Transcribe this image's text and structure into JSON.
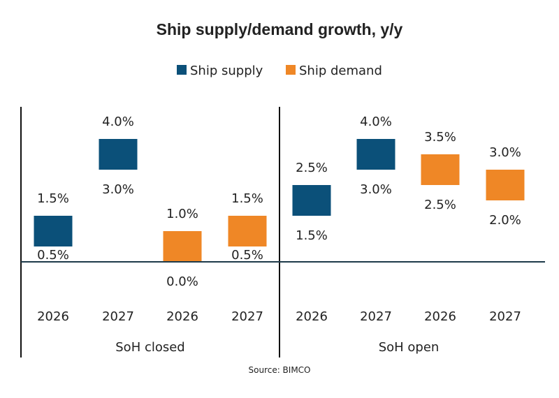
{
  "chart_data": {
    "type": "bar",
    "subtype": "floating-range",
    "title": "Ship supply/demand  growth, y/y",
    "source": "Source: BIMCO",
    "legend_position": "top",
    "series": [
      {
        "name": "Ship supply",
        "color": "#0b5079"
      },
      {
        "name": "Ship demand",
        "color": "#ef8726"
      }
    ],
    "groups": [
      {
        "label": "SoH closed",
        "bars": [
          {
            "category": "2026",
            "series": "Ship supply",
            "low": 0.5,
            "high": 1.5,
            "low_label": "0.5%",
            "high_label": "1.5%"
          },
          {
            "category": "2027",
            "series": "Ship supply",
            "low": 3.0,
            "high": 4.0,
            "low_label": "3.0%",
            "high_label": "4.0%"
          },
          {
            "category": "2026",
            "series": "Ship demand",
            "low": 0.0,
            "high": 1.0,
            "low_label": "0.0%",
            "high_label": "1.0%"
          },
          {
            "category": "2027",
            "series": "Ship demand",
            "low": 0.5,
            "high": 1.5,
            "low_label": "0.5%",
            "high_label": "1.5%"
          }
        ]
      },
      {
        "label": "SoH open",
        "bars": [
          {
            "category": "2026",
            "series": "Ship supply",
            "low": 1.5,
            "high": 2.5,
            "low_label": "1.5%",
            "high_label": "2.5%"
          },
          {
            "category": "2027",
            "series": "Ship supply",
            "low": 3.0,
            "high": 4.0,
            "low_label": "3.0%",
            "high_label": "4.0%"
          },
          {
            "category": "2026",
            "series": "Ship demand",
            "low": 2.5,
            "high": 3.5,
            "low_label": "2.5%",
            "high_label": "3.5%"
          },
          {
            "category": "2027",
            "series": "Ship demand",
            "low": 2.0,
            "high": 3.0,
            "low_label": "2.0%",
            "high_label": "3.0%"
          }
        ]
      }
    ],
    "yunit": "%",
    "grid": false
  }
}
